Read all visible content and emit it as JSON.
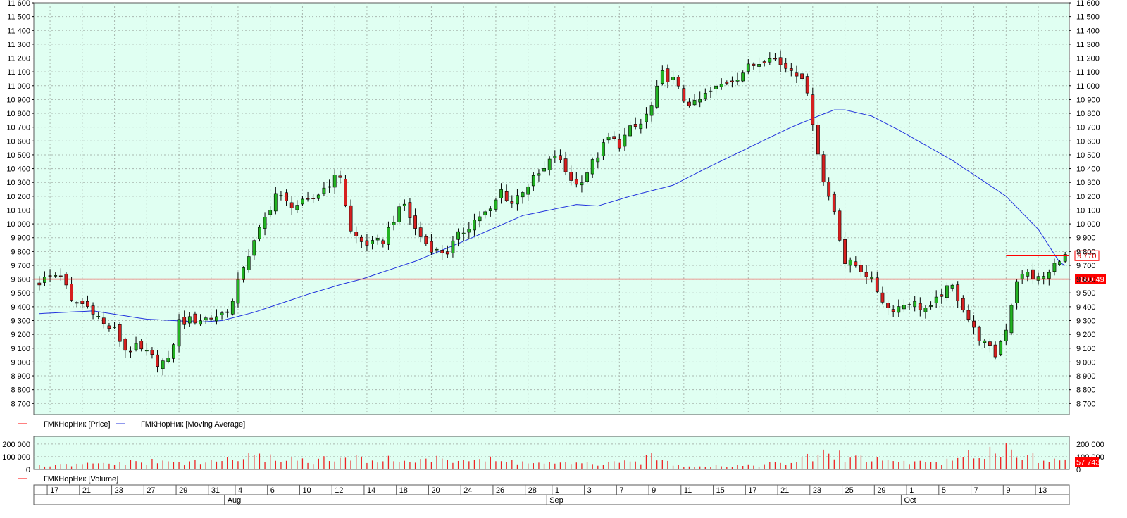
{
  "colors": {
    "plot_bg": "#e0fff2",
    "grid": "#a9b8b0",
    "up": "#22b322",
    "down": "#d62020",
    "wick": "#000000",
    "ma": "#2233dd",
    "level": "#ff0000",
    "volume": "#ee2222"
  },
  "legends": {
    "price": "ГМКНорНик [Price]",
    "ma": "ГМКНорНик [Moving Average]",
    "volume": "ГМКНорНик [Volume]"
  },
  "chart_data": {
    "type": "candlestick",
    "y_axis": {
      "min": 8620,
      "max": 11600,
      "ticks": [
        "8 700",
        "8 800",
        "8 900",
        "9 000",
        "9 100",
        "9 200",
        "9 300",
        "9 400",
        "9 500",
        "9 600",
        "9 700",
        "9 800",
        "9 900",
        "10 000",
        "10 100",
        "10 200",
        "10 300",
        "10 400",
        "10 500",
        "10 600",
        "10 700",
        "10 800",
        "10 900",
        "11 000",
        "11 100",
        "11 200",
        "11 300",
        "11 400",
        "11 500",
        "11 600"
      ],
      "tick_values": [
        8700,
        8800,
        8900,
        9000,
        9100,
        9200,
        9300,
        9400,
        9500,
        9600,
        9700,
        9800,
        9900,
        10000,
        10100,
        10200,
        10300,
        10400,
        10500,
        10600,
        10700,
        10800,
        10900,
        11000,
        11100,
        11200,
        11300,
        11400,
        11500,
        11600
      ]
    },
    "x_labels": [
      {
        "label": "17",
        "i": 2
      },
      {
        "label": "21",
        "i": 8
      },
      {
        "label": "23",
        "i": 14
      },
      {
        "label": "27",
        "i": 20
      },
      {
        "label": "29",
        "i": 26
      },
      {
        "label": "31",
        "i": 32
      },
      {
        "label": "4",
        "i": 37
      },
      {
        "label": "6",
        "i": 43
      },
      {
        "label": "10",
        "i": 49
      },
      {
        "label": "12",
        "i": 55
      },
      {
        "label": "14",
        "i": 61
      },
      {
        "label": "18",
        "i": 67
      },
      {
        "label": "20",
        "i": 73
      },
      {
        "label": "24",
        "i": 79
      },
      {
        "label": "26",
        "i": 85
      },
      {
        "label": "28",
        "i": 91
      },
      {
        "label": "1",
        "i": 96
      },
      {
        "label": "3",
        "i": 102
      },
      {
        "label": "7",
        "i": 108
      },
      {
        "label": "9",
        "i": 114
      },
      {
        "label": "11",
        "i": 120
      },
      {
        "label": "15",
        "i": 126
      },
      {
        "label": "17",
        "i": 132
      },
      {
        "label": "21",
        "i": 138
      },
      {
        "label": "23",
        "i": 144
      },
      {
        "label": "25",
        "i": 150
      },
      {
        "label": "29",
        "i": 156
      },
      {
        "label": "1",
        "i": 162
      },
      {
        "label": "5",
        "i": 168
      },
      {
        "label": "7",
        "i": 174
      },
      {
        "label": "9",
        "i": 180
      },
      {
        "label": "13",
        "i": 186
      }
    ],
    "month_labels": [
      {
        "label": "Aug",
        "i": 35
      },
      {
        "label": "Sep",
        "i": 95
      },
      {
        "label": "Oct",
        "i": 161
      }
    ],
    "level_value": 9600.49,
    "level_label": "9600.49",
    "last_price": 9770,
    "last_price_label": "9 770",
    "hidden_tick_label": "9 800",
    "volume_axis": {
      "max": 260000,
      "ticks": [
        "0",
        "100 000",
        "200 000"
      ],
      "tick_values": [
        0,
        100000,
        200000
      ],
      "last_volume_label": "57 743"
    },
    "anchors": {
      "price": [
        [
          0,
          9580
        ],
        [
          2,
          9620
        ],
        [
          4,
          9640
        ],
        [
          6,
          9430
        ],
        [
          8,
          9420
        ],
        [
          10,
          9380
        ],
        [
          12,
          9270
        ],
        [
          14,
          9230
        ],
        [
          16,
          9090
        ],
        [
          18,
          9100
        ],
        [
          20,
          9060
        ],
        [
          22,
          9000
        ],
        [
          24,
          9000
        ],
        [
          26,
          9290
        ],
        [
          28,
          9300
        ],
        [
          30,
          9310
        ],
        [
          32,
          9320
        ],
        [
          34,
          9350
        ],
        [
          36,
          9430
        ],
        [
          38,
          9700
        ],
        [
          40,
          9860
        ],
        [
          42,
          10040
        ],
        [
          44,
          10220
        ],
        [
          46,
          10150
        ],
        [
          48,
          10140
        ],
        [
          50,
          10150
        ],
        [
          52,
          10220
        ],
        [
          54,
          10300
        ],
        [
          56,
          10350
        ],
        [
          58,
          9940
        ],
        [
          60,
          9870
        ],
        [
          62,
          9850
        ],
        [
          64,
          9880
        ],
        [
          66,
          10040
        ],
        [
          68,
          10140
        ],
        [
          70,
          9960
        ],
        [
          72,
          9860
        ],
        [
          74,
          9800
        ],
        [
          76,
          9800
        ],
        [
          78,
          9910
        ],
        [
          80,
          9990
        ],
        [
          82,
          10060
        ],
        [
          84,
          10090
        ],
        [
          86,
          10240
        ],
        [
          88,
          10150
        ],
        [
          90,
          10250
        ],
        [
          92,
          10320
        ],
        [
          94,
          10390
        ],
        [
          96,
          10500
        ],
        [
          98,
          10380
        ],
        [
          100,
          10280
        ],
        [
          102,
          10380
        ],
        [
          104,
          10500
        ],
        [
          106,
          10620
        ],
        [
          108,
          10580
        ],
        [
          110,
          10680
        ],
        [
          112,
          10720
        ],
        [
          114,
          10850
        ],
        [
          116,
          11080
        ],
        [
          118,
          11040
        ],
        [
          120,
          10900
        ],
        [
          122,
          10860
        ],
        [
          124,
          10930
        ],
        [
          126,
          10980
        ],
        [
          128,
          11030
        ],
        [
          130,
          11070
        ],
        [
          132,
          11130
        ],
        [
          134,
          11170
        ],
        [
          136,
          11230
        ],
        [
          138,
          11150
        ],
        [
          140,
          11120
        ],
        [
          142,
          11080
        ],
        [
          144,
          10750
        ],
        [
          146,
          10300
        ],
        [
          148,
          10100
        ],
        [
          150,
          9720
        ],
        [
          152,
          9700
        ],
        [
          154,
          9640
        ],
        [
          156,
          9520
        ],
        [
          158,
          9390
        ],
        [
          160,
          9400
        ],
        [
          162,
          9440
        ],
        [
          164,
          9400
        ],
        [
          166,
          9380
        ],
        [
          168,
          9500
        ],
        [
          170,
          9540
        ],
        [
          172,
          9400
        ],
        [
          174,
          9230
        ],
        [
          176,
          9130
        ],
        [
          178,
          9050
        ],
        [
          180,
          9250
        ],
        [
          182,
          9600
        ],
        [
          184,
          9640
        ],
        [
          186,
          9600
        ],
        [
          188,
          9640
        ],
        [
          190,
          9760
        ]
      ],
      "ma": [
        [
          0,
          9350
        ],
        [
          10,
          9370
        ],
        [
          20,
          9310
        ],
        [
          30,
          9290
        ],
        [
          34,
          9300
        ],
        [
          40,
          9360
        ],
        [
          50,
          9490
        ],
        [
          56,
          9560
        ],
        [
          60,
          9600
        ],
        [
          70,
          9730
        ],
        [
          80,
          9890
        ],
        [
          90,
          10060
        ],
        [
          100,
          10140
        ],
        [
          104,
          10130
        ],
        [
          110,
          10200
        ],
        [
          118,
          10280
        ],
        [
          124,
          10400
        ],
        [
          132,
          10550
        ],
        [
          140,
          10700
        ],
        [
          145,
          10780
        ],
        [
          148,
          10825
        ],
        [
          150,
          10825
        ],
        [
          155,
          10780
        ],
        [
          160,
          10680
        ],
        [
          170,
          10460
        ],
        [
          180,
          10200
        ],
        [
          186,
          9960
        ],
        [
          190,
          9720
        ],
        [
          196,
          9600
        ]
      ],
      "volume": [
        [
          0,
          25000
        ],
        [
          10,
          40000
        ],
        [
          20,
          60000
        ],
        [
          30,
          50000
        ],
        [
          37,
          90000
        ],
        [
          43,
          90000
        ],
        [
          50,
          70000
        ],
        [
          60,
          80000
        ],
        [
          70,
          70000
        ],
        [
          80,
          80000
        ],
        [
          90,
          55000
        ],
        [
          100,
          40000
        ],
        [
          110,
          50000
        ],
        [
          114,
          90000
        ],
        [
          120,
          30000
        ],
        [
          130,
          30000
        ],
        [
          140,
          50000
        ],
        [
          146,
          120000
        ],
        [
          150,
          100000
        ],
        [
          160,
          60000
        ],
        [
          170,
          60000
        ],
        [
          176,
          150000
        ],
        [
          180,
          160000
        ],
        [
          186,
          90000
        ],
        [
          190,
          60000
        ]
      ]
    },
    "series": [
      {
        "name": "ГМКНорНик [Price]",
        "kind": "candlestick"
      },
      {
        "name": "ГМКНорНик [Moving Average]",
        "kind": "line"
      },
      {
        "name": "ГМКНорНик [Volume]",
        "kind": "bar"
      }
    ]
  }
}
